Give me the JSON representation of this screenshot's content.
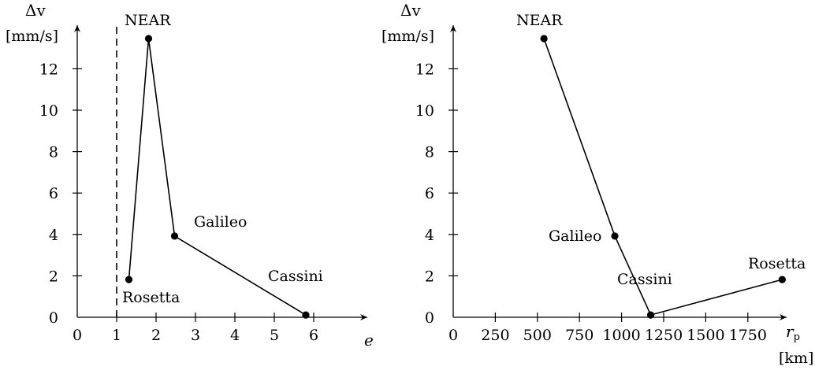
{
  "chart_data": [
    {
      "type": "line",
      "ylabel": "Δv",
      "yunit": "[mm/s]",
      "xlabel": "e",
      "xlim": [
        0,
        6.4
      ],
      "ylim": [
        0,
        13.8
      ],
      "xticks": [
        0,
        1,
        2,
        3,
        4,
        5,
        6
      ],
      "yticks": [
        0,
        2,
        4,
        6,
        8,
        10,
        12
      ],
      "reference_line": {
        "x": 1,
        "style": "dashed"
      },
      "points": [
        {
          "label": "Rosetta",
          "x": 1.31,
          "y": 1.82
        },
        {
          "label": "NEAR",
          "x": 1.81,
          "y": 13.46
        },
        {
          "label": "Galileo",
          "x": 2.47,
          "y": 3.92
        },
        {
          "label": "Cassini",
          "x": 5.8,
          "y": 0.11
        }
      ]
    },
    {
      "type": "line",
      "ylabel": "Δv",
      "yunit": "[mm/s]",
      "xlabel": "r",
      "xlabel_sub": "p",
      "xunit": "[km]",
      "xlim": [
        0,
        1950
      ],
      "ylim": [
        0,
        13.8
      ],
      "xticks": [
        0,
        250,
        500,
        750,
        1000,
        1250,
        1500,
        1750
      ],
      "yticks": [
        0,
        2,
        4,
        6,
        8,
        10,
        12
      ],
      "points": [
        {
          "label": "NEAR",
          "x": 539,
          "y": 13.46
        },
        {
          "label": "Galileo",
          "x": 960,
          "y": 3.92
        },
        {
          "label": "Cassini",
          "x": 1173,
          "y": 0.11
        },
        {
          "label": "Rosetta",
          "x": 1954,
          "y": 1.82
        }
      ]
    }
  ]
}
